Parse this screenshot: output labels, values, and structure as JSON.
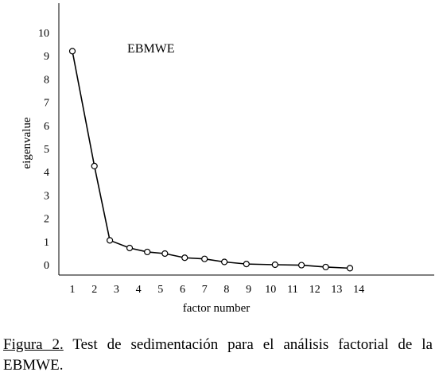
{
  "chart_data": {
    "type": "line",
    "annotation": "EBMWE",
    "xlabel": "factor number",
    "ylabel": "eigenvalue",
    "x_ticks": [
      1,
      2,
      3,
      4,
      5,
      6,
      7,
      8,
      9,
      10,
      11,
      12,
      13,
      14
    ],
    "y_ticks": [
      0,
      1,
      2,
      3,
      4,
      5,
      6,
      7,
      8,
      9,
      10
    ],
    "series": [
      {
        "x": [
          1,
          2,
          2.7,
          3.6,
          4.4,
          5.2,
          6.1,
          7,
          7.9,
          8.9,
          10.2,
          11.4,
          12.5,
          13.6
        ],
        "values": [
          9.2,
          4.25,
          1.05,
          0.72,
          0.55,
          0.48,
          0.3,
          0.25,
          0.12,
          0.03,
          0.0,
          -0.02,
          -0.1,
          -0.15
        ]
      }
    ],
    "grid": false,
    "markers": "open-circle"
  },
  "caption": {
    "label": "Figura 2.",
    "text": " Test de sedimentación para el análisis factorial de la EBMWE."
  }
}
